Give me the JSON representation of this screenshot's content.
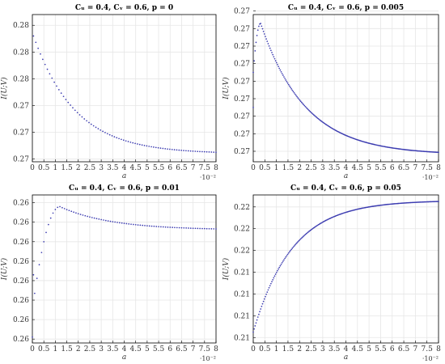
{
  "chart_data": [
    {
      "type": "scatter",
      "title": "Cᵤ = 0.4, Cᵥ = 0.6, p = 0",
      "xlabel": "a",
      "ylabel": "I(U;V)",
      "x_multiplier": "·10⁻²",
      "xlim": [
        0,
        8
      ],
      "ylim": [
        0.2698,
        0.2808
      ],
      "x_ticks": [
        0,
        0.5,
        1,
        1.5,
        2,
        2.5,
        3,
        3.5,
        4,
        4.5,
        5,
        5.5,
        6,
        6.5,
        7,
        7.5,
        8
      ],
      "x_tick_labels": [
        "0",
        "0.5",
        "1",
        "1.5",
        "2",
        "2.5",
        "3",
        "3.5",
        "4",
        "4.5",
        "5",
        "5.5",
        "6",
        "6.5",
        "7",
        "7.5",
        "8"
      ],
      "y_ticks": [
        0.27,
        0.272,
        0.274,
        0.276,
        0.278,
        0.28
      ],
      "y_tick_labels": [
        "0.27",
        "0.27",
        "0.27",
        "0.28",
        "0.28",
        "0.28"
      ],
      "grid": true,
      "color": "#3b3bb0",
      "curve": {
        "x_start": 0.05,
        "x_end": 8,
        "points": 80,
        "kind": "decay",
        "y_start": 0.2792,
        "y_end": 0.2704,
        "rate": 0.55
      },
      "extra_points": []
    },
    {
      "type": "scatter",
      "title": "Cᵤ = 0.4, Cᵥ = 0.6, p = 0.005",
      "xlabel": "a",
      "ylabel": "I(U;V)",
      "x_multiplier": "·10⁻²",
      "xlim": [
        0,
        8
      ],
      "ylim": [
        0.2684,
        0.2768
      ],
      "x_ticks": [
        0,
        0.5,
        1,
        1.5,
        2,
        2.5,
        3,
        3.5,
        4,
        4.5,
        5,
        5.5,
        6,
        6.5,
        7,
        7.5,
        8
      ],
      "x_tick_labels": [
        "0",
        "0.5",
        "1",
        "1.5",
        "2",
        "2.5",
        "3",
        "3.5",
        "4",
        "4.5",
        "5",
        "5.5",
        "6",
        "6.5",
        "7",
        "7.5",
        "8"
      ],
      "y_ticks": [
        0.269,
        0.27,
        0.271,
        0.272,
        0.273,
        0.274,
        0.275,
        0.276,
        0.277
      ],
      "y_tick_labels": [
        "0.27",
        "0.27",
        "0.27",
        "0.27",
        "0.27",
        "0.27",
        "0.27",
        "0.27",
        "0.27"
      ],
      "grid": true,
      "color": "#3b3bb0",
      "curve": {
        "x_start": 0.0,
        "x_end": 8,
        "points": 200,
        "kind": "hump",
        "y_base": 0.2688,
        "y_peak": 0.2763,
        "peak_x": 0.32,
        "y0": 0.2735,
        "rate": 0.52
      },
      "extra_points": [
        {
          "x": 0.0,
          "y": 0.2715
        }
      ]
    },
    {
      "type": "scatter",
      "title": "Cᵤ = 0.4, Cᵥ = 0.6, p = 0.01",
      "xlabel": "a",
      "ylabel": "I(U;V)",
      "x_multiplier": "·10⁻²",
      "xlim": [
        0,
        8
      ],
      "ylim": [
        0.2558,
        0.2634
      ],
      "x_ticks": [
        0,
        0.5,
        1,
        1.5,
        2,
        2.5,
        3,
        3.5,
        4,
        4.5,
        5,
        5.5,
        6,
        6.5,
        7,
        7.5,
        8
      ],
      "x_tick_labels": [
        "0",
        "0.5",
        "1",
        "1.5",
        "2",
        "2.5",
        "3",
        "3.5",
        "4",
        "4.5",
        "5",
        "5.5",
        "6",
        "6.5",
        "7",
        "7.5",
        "8"
      ],
      "y_ticks": [
        0.256,
        0.257,
        0.258,
        0.259,
        0.26,
        0.261,
        0.262,
        0.263
      ],
      "y_tick_labels": [
        "0.26",
        "0.26",
        "0.26",
        "0.26",
        "0.26",
        "0.26",
        "0.26",
        "0.26"
      ],
      "grid": true,
      "color": "#3b3bb0",
      "curve": {
        "x_start": 0.1,
        "x_end": 8,
        "points": 80,
        "kind": "hump",
        "y_base": 0.2616,
        "y_peak": 0.2628,
        "peak_x": 1.2,
        "y0": 0.2575,
        "rate": 0.45
      },
      "extra_points": [
        {
          "x": 0.0,
          "y": 0.2561
        },
        {
          "x": 0.05,
          "y": 0.2593
        }
      ]
    },
    {
      "type": "scatter",
      "title": "Cᵤ = 0.4, Cᵥ = 0.6, p = 0.05",
      "xlabel": "a",
      "ylabel": "I(U;V)",
      "x_multiplier": "·10⁻²",
      "xlim": [
        0,
        8
      ],
      "ylim": [
        0.2095,
        0.2231
      ],
      "x_ticks": [
        0,
        0.5,
        1,
        1.5,
        2,
        2.5,
        3,
        3.5,
        4,
        4.5,
        5,
        5.5,
        6,
        6.5,
        7,
        7.5,
        8
      ],
      "x_tick_labels": [
        "0",
        "0.5",
        "1",
        "1.5",
        "2",
        "2.5",
        "3",
        "3.5",
        "4",
        "4.5",
        "5",
        "5.5",
        "6",
        "6.5",
        "7",
        "7.5",
        "8"
      ],
      "y_ticks": [
        0.21,
        0.212,
        0.214,
        0.216,
        0.218,
        0.22,
        0.222
      ],
      "y_tick_labels": [
        "0.21",
        "0.21",
        "0.21",
        "0.21",
        "0.22",
        "0.22",
        "0.22"
      ],
      "grid": true,
      "color": "#3b3bb0",
      "curve": {
        "x_start": 0.0,
        "x_end": 8,
        "points": 200,
        "kind": "rise",
        "y_start": 0.2105,
        "y_end": 0.2226,
        "rate": 0.6
      },
      "extra_points": []
    }
  ]
}
